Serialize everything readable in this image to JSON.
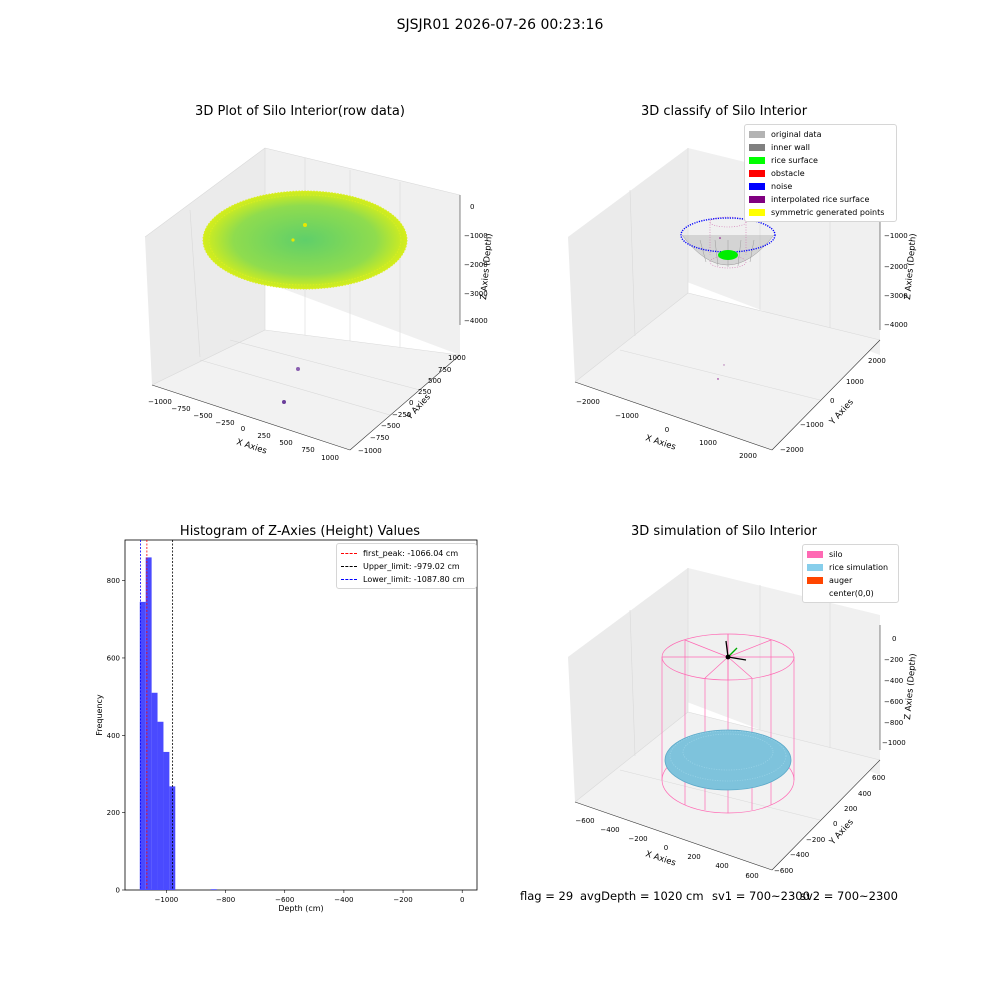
{
  "header": {
    "title": "SJSJR01 2026-07-26 00:23:16"
  },
  "footer": {
    "flag": "flag = 29",
    "avg_depth": "avgDepth = 1020 cm",
    "sv1": "sv1 = 700~2300",
    "sv2": "sv2 = 700~2300"
  },
  "colors": {
    "original": "#b3b3b3",
    "inner_wall": "#808080",
    "rice_surface": "#00ff00",
    "obstacle": "#ff0000",
    "noise": "#0000ff",
    "interpolated": "#800080",
    "symmetric": "#ffff00",
    "silo": "#ff69b4",
    "rice_sim": "#87ceeb",
    "auger": "#ff4500",
    "hist_bar": "#4a4aff"
  },
  "chart_data": [
    {
      "type": "scatter",
      "title": "3D Plot of Silo Interior(row data)",
      "xlabel": "X Axies",
      "ylabel": "Y Axies",
      "zlabel": "Z Axies (Depth)",
      "x_ticks": [
        "−1000",
        "−750",
        "−500",
        "−250",
        "0",
        "250",
        "500",
        "750",
        "1000"
      ],
      "y_ticks": [
        "1000",
        "750",
        "500",
        "250",
        "0",
        "−250",
        "−500",
        "−750",
        "−1000"
      ],
      "z_ticks": [
        "0",
        "−1000",
        "−2000",
        "−3000",
        "−4000"
      ],
      "xlim": [
        -1000,
        1000
      ],
      "ylim": [
        -1000,
        1000
      ],
      "zlim": [
        -4400,
        0
      ]
    },
    {
      "type": "scatter",
      "title": "3D classify of Silo Interior",
      "xlabel": "X Axies",
      "ylabel": "Y Axies",
      "zlabel": "Z Axies (Depth)",
      "x_ticks": [
        "−2000",
        "−1000",
        "0",
        "1000",
        "2000"
      ],
      "y_ticks": [
        "2000",
        "1000",
        "0",
        "−1000",
        "−2000"
      ],
      "z_ticks": [
        "−1000",
        "−2000",
        "−3000",
        "−4000"
      ],
      "legend": [
        "original data",
        "inner wall",
        "rice surface",
        "obstacle",
        "noise",
        "interpolated rice surface",
        "symmetric generated points"
      ],
      "legend_position": "top-right"
    },
    {
      "type": "bar",
      "title": "Histogram of Z-Axies (Height) Values",
      "xlabel": "Depth (cm)",
      "ylabel": "Frequency",
      "xlim": [
        -1140,
        50
      ],
      "ylim": [
        0,
        905
      ],
      "x_ticks": [
        -1000,
        -800,
        -600,
        -400,
        -200,
        0
      ],
      "x_tick_labels": [
        "−1000",
        "−800",
        "−600",
        "−400",
        "−200",
        "0"
      ],
      "y_ticks": [
        0,
        200,
        400,
        600,
        800
      ],
      "y_tick_labels": [
        "0",
        "200",
        "400",
        "600",
        "800"
      ],
      "bins": [
        {
          "x0": -1090,
          "x1": -1070,
          "count": 745
        },
        {
          "x0": -1070,
          "x1": -1050,
          "count": 860
        },
        {
          "x0": -1050,
          "x1": -1030,
          "count": 510
        },
        {
          "x0": -1030,
          "x1": -1010,
          "count": 435
        },
        {
          "x0": -1010,
          "x1": -990,
          "count": 357
        },
        {
          "x0": -990,
          "x1": -970,
          "count": 268
        },
        {
          "x0": -850,
          "x1": -830,
          "count": 2
        }
      ],
      "lines": [
        {
          "label": "first_peak: -1066.04 cm",
          "value": -1066.04,
          "color": "#ff0000"
        },
        {
          "label": "Upper_limit: -979.02 cm",
          "value": -979.02,
          "color": "#000000"
        },
        {
          "label": "Lower_limit: -1087.80 cm",
          "value": -1087.8,
          "color": "#0000ff"
        }
      ],
      "legend_position": "top-right"
    },
    {
      "type": "scatter",
      "title": "3D simulation of Silo Interior",
      "xlabel": "X Axies",
      "ylabel": "Y Axies",
      "zlabel": "Z Axies (Depth)",
      "x_ticks": [
        "−600",
        "−400",
        "−200",
        "0",
        "200",
        "400",
        "600"
      ],
      "y_ticks": [
        "600",
        "400",
        "200",
        "0",
        "−200",
        "−400",
        "−600"
      ],
      "z_ticks": [
        "0",
        "−200",
        "−400",
        "−600",
        "−800",
        "−1000"
      ],
      "legend": [
        "silo",
        "rice simulation",
        "auger",
        "center(0,0)"
      ],
      "legend_position": "top-right"
    }
  ]
}
